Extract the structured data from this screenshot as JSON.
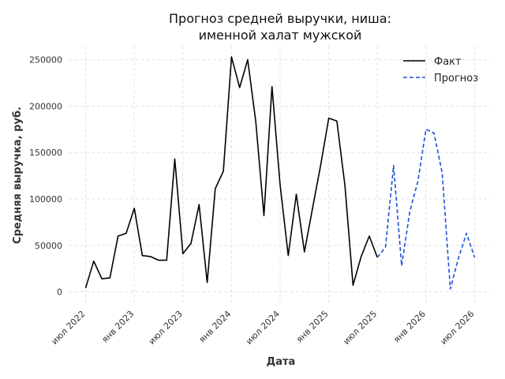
{
  "chart_data": {
    "type": "line",
    "title_lines": [
      "Прогноз средней выручки, ниша:",
      "именной халат мужской"
    ],
    "xlabel": "Дата",
    "ylabel": "Средняя выручка, руб.",
    "x_ticks": [
      {
        "date": "2022-07",
        "label": "июл 2022"
      },
      {
        "date": "2023-01",
        "label": "янв 2023"
      },
      {
        "date": "2023-07",
        "label": "июл 2023"
      },
      {
        "date": "2024-01",
        "label": "янв 2024"
      },
      {
        "date": "2024-07",
        "label": "июл 2024"
      },
      {
        "date": "2025-01",
        "label": "янв 2025"
      },
      {
        "date": "2025-07",
        "label": "июл 2025"
      },
      {
        "date": "2026-01",
        "label": "янв 2026"
      },
      {
        "date": "2026-07",
        "label": "июл 2026"
      }
    ],
    "y_ticks": [
      0,
      50000,
      100000,
      150000,
      200000,
      250000
    ],
    "xlim": [
      "2022-05",
      "2026-09"
    ],
    "ylim": [
      -14000,
      265000
    ],
    "grid": true,
    "legend_position": "top-right",
    "series": [
      {
        "name": "Факт",
        "color": "#000000",
        "dash": "",
        "x": [
          "2022-07",
          "2022-08",
          "2022-09",
          "2022-10",
          "2022-11",
          "2022-12",
          "2023-01",
          "2023-02",
          "2023-03",
          "2023-04",
          "2023-05",
          "2023-06",
          "2023-07",
          "2023-08",
          "2023-09",
          "2023-10",
          "2023-11",
          "2023-12",
          "2024-01",
          "2024-02",
          "2024-03",
          "2024-04",
          "2024-05",
          "2024-06",
          "2024-07",
          "2024-08",
          "2024-09",
          "2024-10",
          "2024-11",
          "2024-12",
          "2025-01",
          "2025-02",
          "2025-03",
          "2025-04",
          "2025-05",
          "2025-06",
          "2025-07"
        ],
        "y": [
          4000,
          33000,
          14000,
          15000,
          60000,
          63000,
          90000,
          39000,
          38000,
          34000,
          34000,
          143000,
          41000,
          52000,
          94000,
          10000,
          111000,
          130000,
          253000,
          220000,
          250000,
          183000,
          82000,
          221000,
          115000,
          39000,
          105000,
          43000,
          90000,
          136000,
          187000,
          184000,
          114000,
          7000,
          38000,
          60000,
          37000
        ]
      },
      {
        "name": "Прогноз",
        "color": "#1f4fd8",
        "dash": "5 3",
        "x": [
          "2025-07",
          "2025-08",
          "2025-09",
          "2025-10",
          "2025-11",
          "2025-12",
          "2026-01",
          "2026-02",
          "2026-03",
          "2026-04",
          "2026-05",
          "2026-06",
          "2026-07"
        ],
        "y": [
          37000,
          48000,
          136000,
          28000,
          86000,
          119000,
          175000,
          171000,
          128000,
          3000,
          36000,
          63000,
          37000
        ]
      }
    ]
  }
}
